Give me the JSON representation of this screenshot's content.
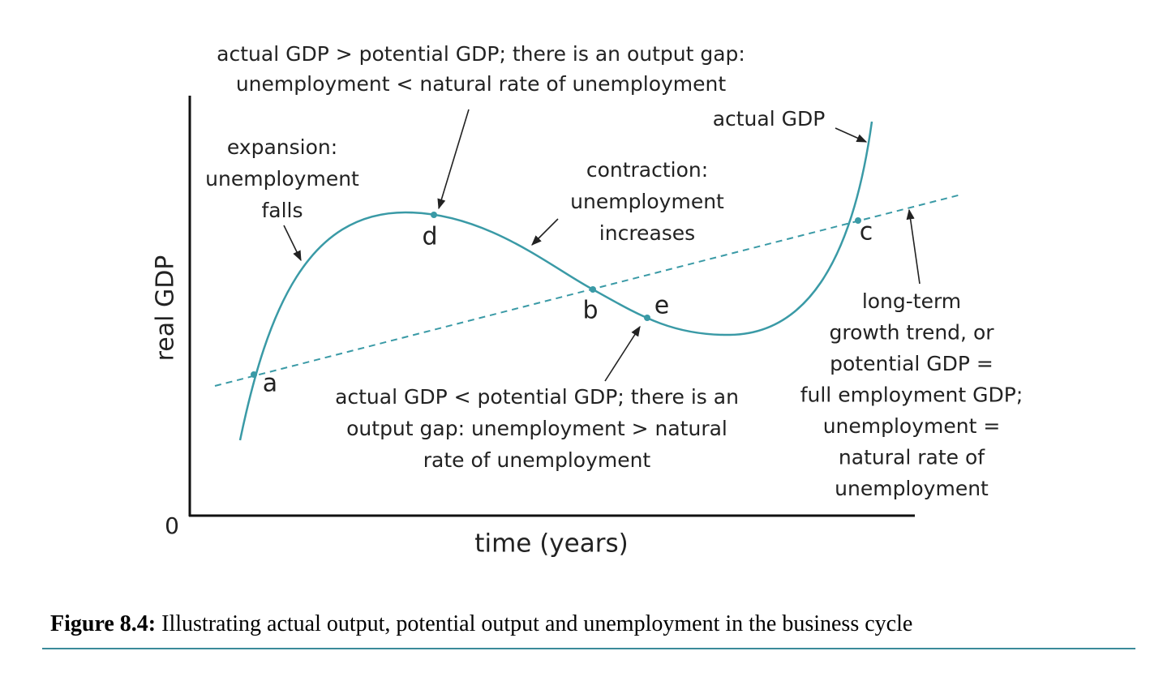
{
  "axes": {
    "y_label": "real GDP",
    "x_label": "time (years)",
    "origin": "0"
  },
  "points": [
    "a",
    "d",
    "b",
    "e",
    "c"
  ],
  "annotations": [
    {
      "lines": [
        "actual GDP > potential GDP; there is an output gap:",
        "unemployment < natural rate of unemployment"
      ]
    },
    {
      "lines": [
        "actual GDP"
      ]
    },
    {
      "lines": [
        "expansion:",
        "unemployment",
        "falls"
      ]
    },
    {
      "lines": [
        "contraction:",
        "unemployment",
        "increases"
      ]
    },
    {
      "lines": [
        "actual GDP < potential GDP; there is an",
        "output gap: unemployment > natural",
        "rate of unemployment"
      ]
    },
    {
      "lines": [
        "long-term",
        "growth trend, or",
        "potential GDP =",
        "full employment GDP;",
        "unemployment =",
        "natural rate of",
        "unemployment"
      ]
    }
  ],
  "caption": {
    "label": "Figure 8.4:",
    "text": "Illustrating actual output, potential output and unemployment in the business cycle"
  }
}
